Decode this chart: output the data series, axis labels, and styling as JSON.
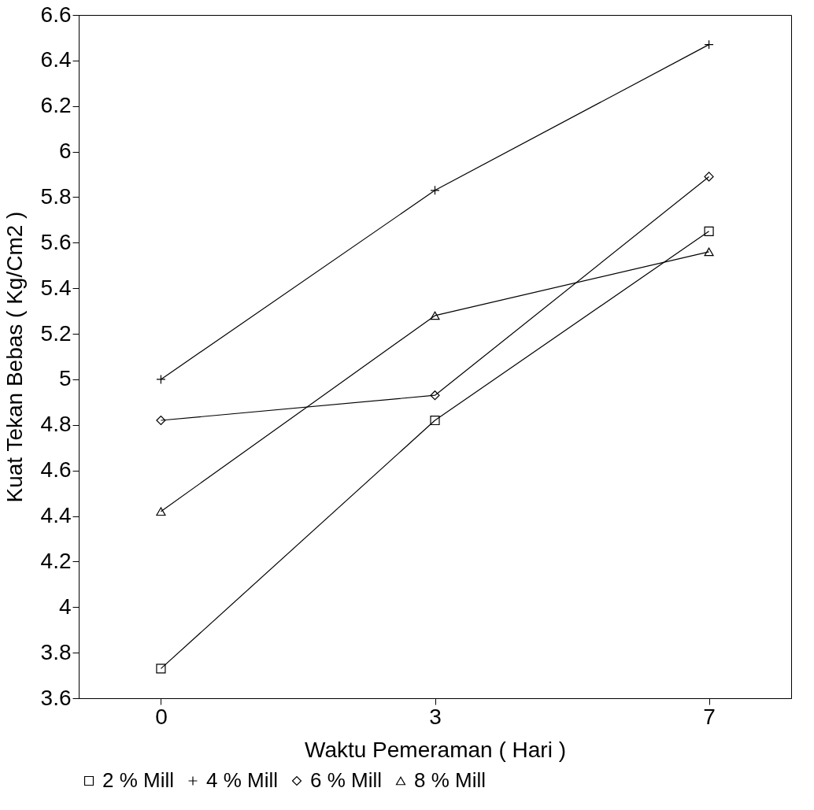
{
  "chart_data": {
    "type": "line",
    "xlabel": "Waktu Pemeraman ( Hari )",
    "ylabel": "Kuat Tekan Bebas ( Kg/Cm2 )",
    "categories": [
      "0",
      "3",
      "7"
    ],
    "ylim": [
      3.6,
      6.6
    ],
    "yticks": [
      3.6,
      3.8,
      4,
      4.2,
      4.4,
      4.6,
      4.8,
      5,
      5.2,
      5.4,
      5.6,
      5.8,
      6,
      6.2,
      6.4,
      6.6
    ],
    "grid": false,
    "legend": "bottom",
    "series": [
      {
        "name": "2 % Mill",
        "color": "#000000",
        "marker": "square",
        "values": [
          3.73,
          4.82,
          5.65
        ]
      },
      {
        "name": "4 % Mill",
        "color": "#000000",
        "marker": "cross",
        "values": [
          5.0,
          5.83,
          6.47
        ]
      },
      {
        "name": "6 % Mill",
        "color": "#000000",
        "marker": "diamond",
        "values": [
          4.82,
          4.93,
          5.89
        ]
      },
      {
        "name": "8 % Mill",
        "color": "#000000",
        "marker": "triangle",
        "values": [
          4.42,
          5.28,
          5.56
        ]
      }
    ]
  }
}
